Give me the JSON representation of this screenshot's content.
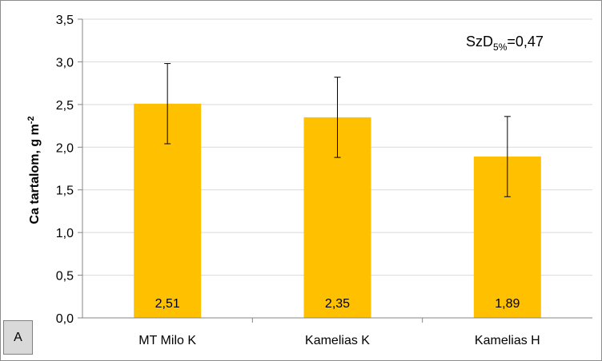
{
  "panel_label": "A",
  "annotation": {
    "prefix": "SzD",
    "subscript": "5%",
    "value": "=0,47"
  },
  "colors": {
    "bar": "#ffc000",
    "grid": "#d9d9d9",
    "axis": "#868686",
    "error_bar": "#000000"
  },
  "chart_data": {
    "type": "bar",
    "categories": [
      "MT Milo K",
      "Kamelias K",
      "Kamelias H"
    ],
    "values": [
      2.51,
      2.35,
      1.89
    ],
    "data_labels": [
      "2,51",
      "2,35",
      "1,89"
    ],
    "error_bars": [
      {
        "low": 2.04,
        "high": 2.98
      },
      {
        "low": 1.88,
        "high": 2.82
      },
      {
        "low": 1.42,
        "high": 2.36
      }
    ],
    "ylabel": {
      "main": "Ca tartalom, g m",
      "superscript": "-2"
    },
    "xlabel": "",
    "ylim": [
      0,
      3.5
    ],
    "yticks": [
      0,
      0.5,
      1.0,
      1.5,
      2.0,
      2.5,
      3.0,
      3.5
    ],
    "ytick_labels": [
      "0,0",
      "0,5",
      "1,0",
      "1,5",
      "2,0",
      "2,5",
      "3,0",
      "3,5"
    ],
    "grid": true,
    "legend": "none"
  }
}
